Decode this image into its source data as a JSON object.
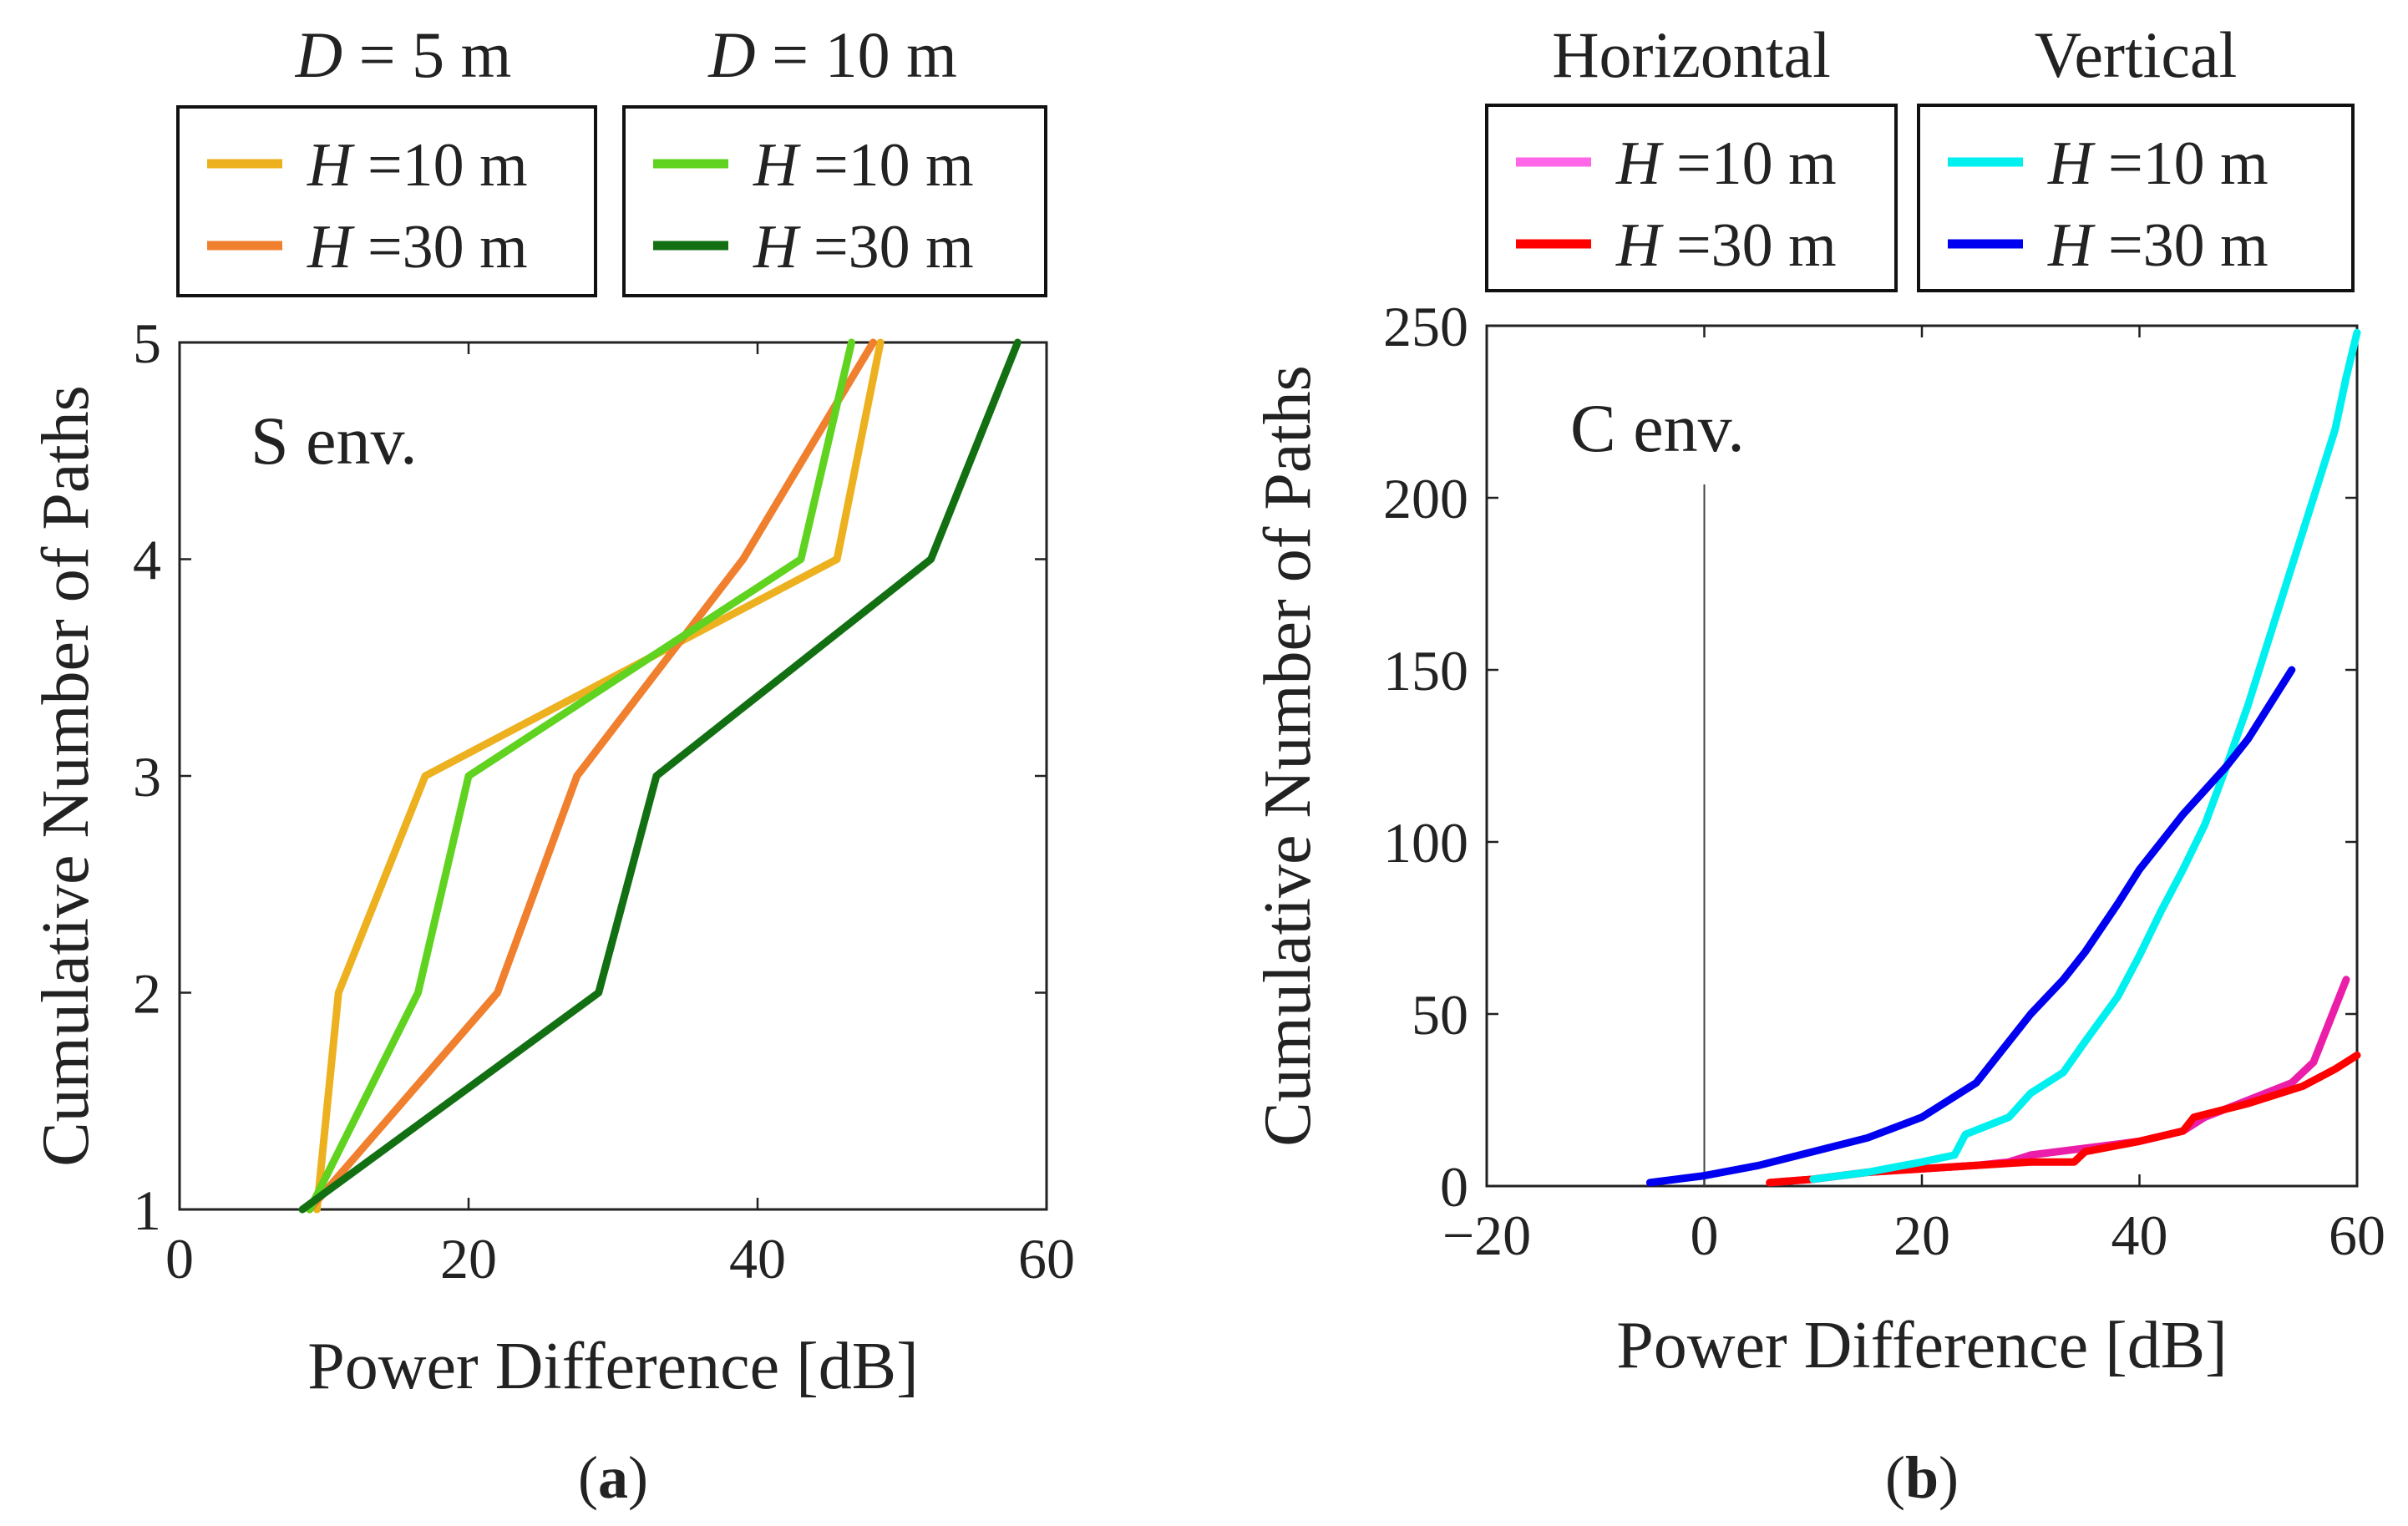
{
  "figure": {
    "captions": [
      "(a)",
      "(b)"
    ]
  },
  "chart_data": [
    {
      "type": "line",
      "panel_caption": "(a)",
      "annotation": "S env.",
      "xlabel": "Power Difference [dB]",
      "ylabel": "Cumulative Number of Paths",
      "xlim": [
        0,
        60
      ],
      "ylim": [
        1,
        5
      ],
      "xticks": [
        0,
        20,
        40,
        60
      ],
      "yticks": [
        1,
        2,
        3,
        4,
        5
      ],
      "grid": false,
      "legend_groups": [
        {
          "title": "D = 5 m",
          "title_var": "D",
          "title_rest": " = 5 m",
          "entries": [
            0,
            1
          ]
        },
        {
          "title": "D = 10 m",
          "title_var": "D",
          "title_rest": " = 10 m",
          "entries": [
            2,
            3
          ]
        }
      ],
      "series": [
        {
          "name": "H =10 m",
          "var": "H",
          "rest": " =10 m",
          "color": "#EDB120",
          "x": [
            9.5,
            11,
            17,
            45.5,
            48.5
          ],
          "y": [
            1,
            2,
            3,
            4,
            5
          ]
        },
        {
          "name": "H =30 m",
          "var": "H",
          "rest": " =30 m",
          "color": "#F07F2E",
          "x": [
            9,
            22,
            27.5,
            39,
            48
          ],
          "y": [
            1,
            2,
            3,
            4,
            5
          ]
        },
        {
          "name": "H =10 m",
          "var": "H",
          "rest": " =10 m",
          "color": "#5FD31F",
          "x": [
            9,
            16.5,
            20,
            43,
            46.5
          ],
          "y": [
            1,
            2,
            3,
            4,
            5
          ]
        },
        {
          "name": "H =30 m",
          "var": "H",
          "rest": " =30 m",
          "color": "#127012",
          "x": [
            8.5,
            29,
            33,
            52,
            58
          ],
          "y": [
            1,
            2,
            3,
            4,
            5
          ]
        }
      ]
    },
    {
      "type": "line",
      "panel_caption": "(b)",
      "annotation": "C env.",
      "xlabel": "Power Difference [dB]",
      "ylabel": "Cumulative Number of Paths",
      "xlim": [
        -20,
        60
      ],
      "ylim": [
        0,
        250
      ],
      "xticks": [
        -20,
        0,
        20,
        40,
        60
      ],
      "xtick_labels": [
        "−20",
        "0",
        "20",
        "40",
        "60"
      ],
      "yticks": [
        0,
        50,
        100,
        150,
        200,
        250
      ],
      "grid": false,
      "reference_line_x": 0,
      "legend_groups": [
        {
          "title": "Horizontal",
          "entries": [
            0,
            1
          ]
        },
        {
          "title": "Vertical",
          "entries": [
            2,
            3
          ]
        }
      ],
      "series": [
        {
          "name": "H =10 m",
          "var": "H",
          "rest": " =10 m",
          "color": "#EA1EA8",
          "legend_color": "#FF66E8",
          "x": [
            6,
            10,
            15,
            20,
            25,
            28,
            30,
            35,
            40,
            44,
            46,
            50,
            54,
            56,
            57,
            58,
            59
          ],
          "y": [
            1,
            2,
            4,
            5,
            6,
            7,
            9,
            11,
            13,
            16,
            20,
            25,
            30,
            36,
            44,
            52,
            60
          ]
        },
        {
          "name": "H =30 m",
          "var": "H",
          "rest": " =30 m",
          "color": "#FF0000",
          "x": [
            6,
            10,
            15,
            20,
            25,
            30,
            34,
            35,
            40,
            44,
            45,
            50,
            55,
            58,
            60
          ],
          "y": [
            1,
            2,
            4,
            5,
            6,
            7,
            7,
            10,
            13,
            16,
            20,
            24,
            29,
            34,
            38
          ]
        },
        {
          "name": "H =10 m",
          "var": "H",
          "rest": " =10 m",
          "color": "#00F0F0",
          "x": [
            10,
            15,
            20,
            23,
            24,
            28,
            30,
            33,
            35,
            38,
            40,
            42,
            44,
            46,
            48,
            50,
            52,
            54,
            56,
            58,
            59,
            60
          ],
          "y": [
            2,
            4,
            7,
            9,
            15,
            20,
            27,
            33,
            42,
            55,
            67,
            80,
            92,
            105,
            122,
            140,
            160,
            180,
            200,
            220,
            235,
            248
          ]
        },
        {
          "name": "H =30 m",
          "var": "H",
          "rest": " =30 m",
          "color": "#0000F0",
          "x": [
            -5,
            0,
            5,
            10,
            15,
            20,
            25,
            28,
            30,
            33,
            35,
            38,
            40,
            42,
            44,
            46,
            48,
            50,
            52,
            54
          ],
          "y": [
            1,
            3,
            6,
            10,
            14,
            20,
            30,
            42,
            50,
            60,
            68,
            82,
            92,
            100,
            108,
            115,
            122,
            130,
            140,
            150
          ]
        }
      ]
    }
  ]
}
